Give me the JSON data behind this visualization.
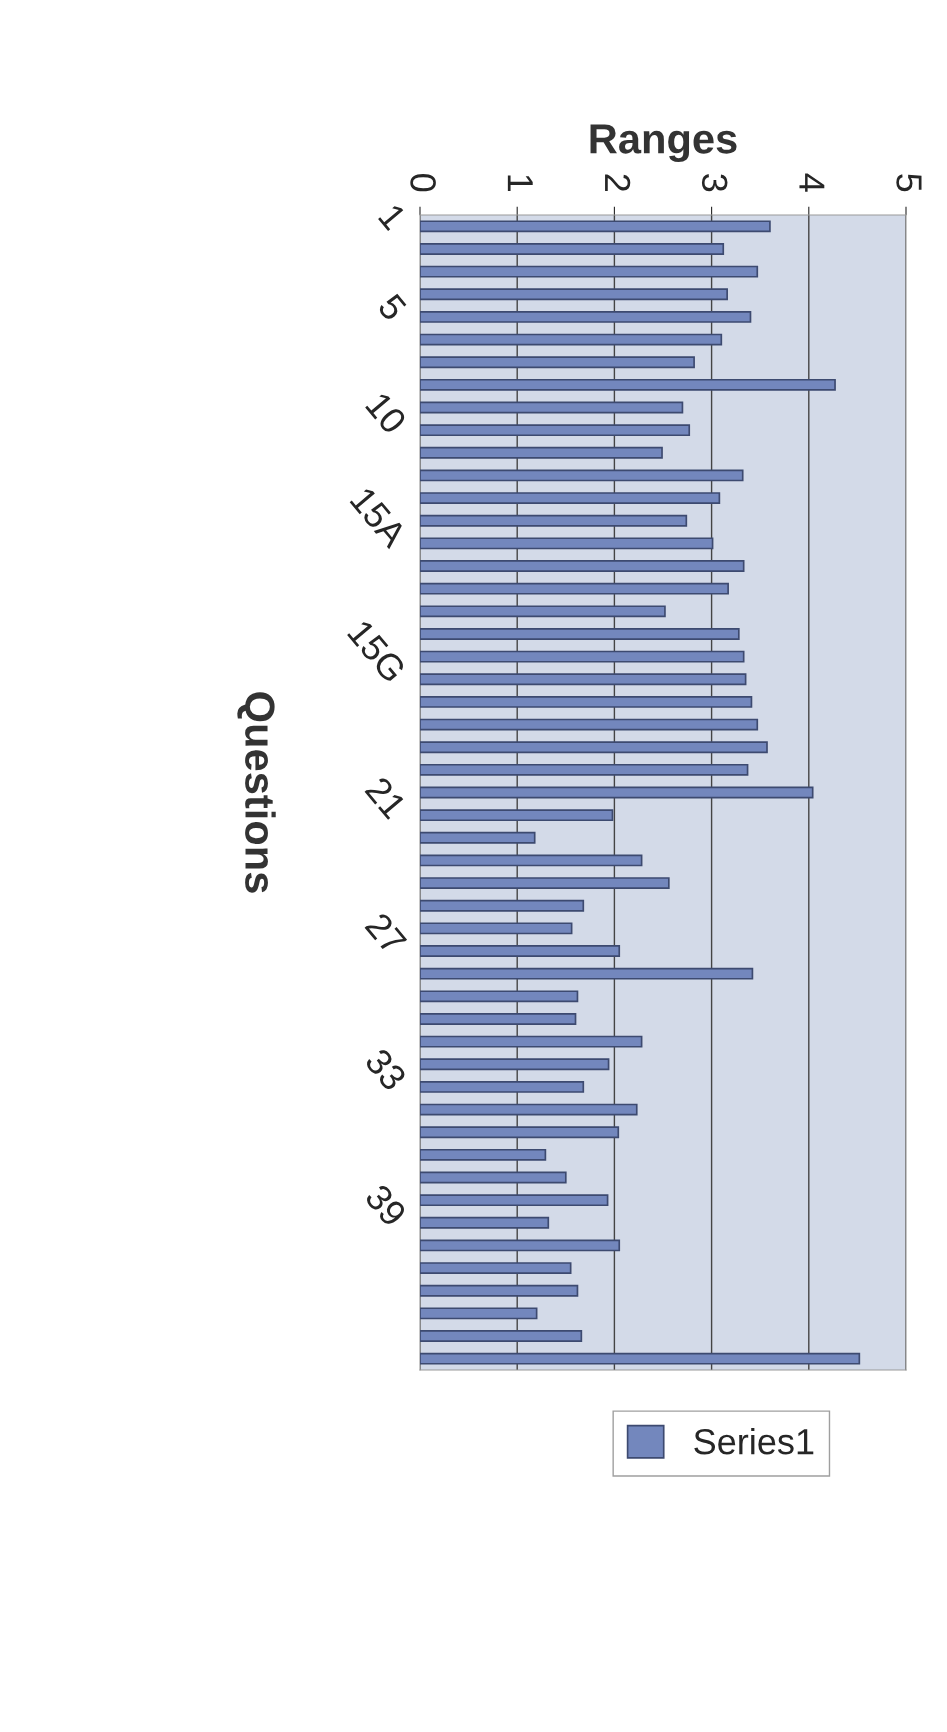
{
  "chart_data": {
    "type": "bar",
    "orientation": "horizontal",
    "xlabel": "Ranges",
    "ylabel": "Questions",
    "categories": [
      "1",
      null,
      null,
      null,
      "5",
      null,
      null,
      null,
      null,
      "10",
      null,
      null,
      null,
      null,
      "15A",
      null,
      null,
      null,
      null,
      null,
      "15G",
      null,
      null,
      null,
      null,
      null,
      "21",
      null,
      null,
      null,
      null,
      null,
      "27",
      null,
      null,
      null,
      null,
      null,
      "33",
      null,
      null,
      null,
      null,
      null,
      "39",
      null,
      null,
      null,
      null,
      null,
      null
    ],
    "series": [
      {
        "name": "Series1",
        "color": "#7387bd",
        "values": [
          3.6,
          3.12,
          3.47,
          3.16,
          3.4,
          3.1,
          2.82,
          4.27,
          2.7,
          2.77,
          2.49,
          3.32,
          3.08,
          2.74,
          3.01,
          3.33,
          3.17,
          2.52,
          3.28,
          3.33,
          3.35,
          3.41,
          3.47,
          3.57,
          3.37,
          4.04,
          1.98,
          1.18,
          2.28,
          2.56,
          1.68,
          1.56,
          2.05,
          3.42,
          1.62,
          1.6,
          2.28,
          1.94,
          1.68,
          2.23,
          2.04,
          1.29,
          1.5,
          1.93,
          1.32,
          2.05,
          1.55,
          1.62,
          1.2,
          1.66,
          4.52
        ]
      }
    ],
    "xlim": [
      0,
      5
    ],
    "xticks": [
      0,
      1,
      2,
      3,
      4,
      5
    ],
    "grid": "x",
    "legend": "bottom"
  }
}
